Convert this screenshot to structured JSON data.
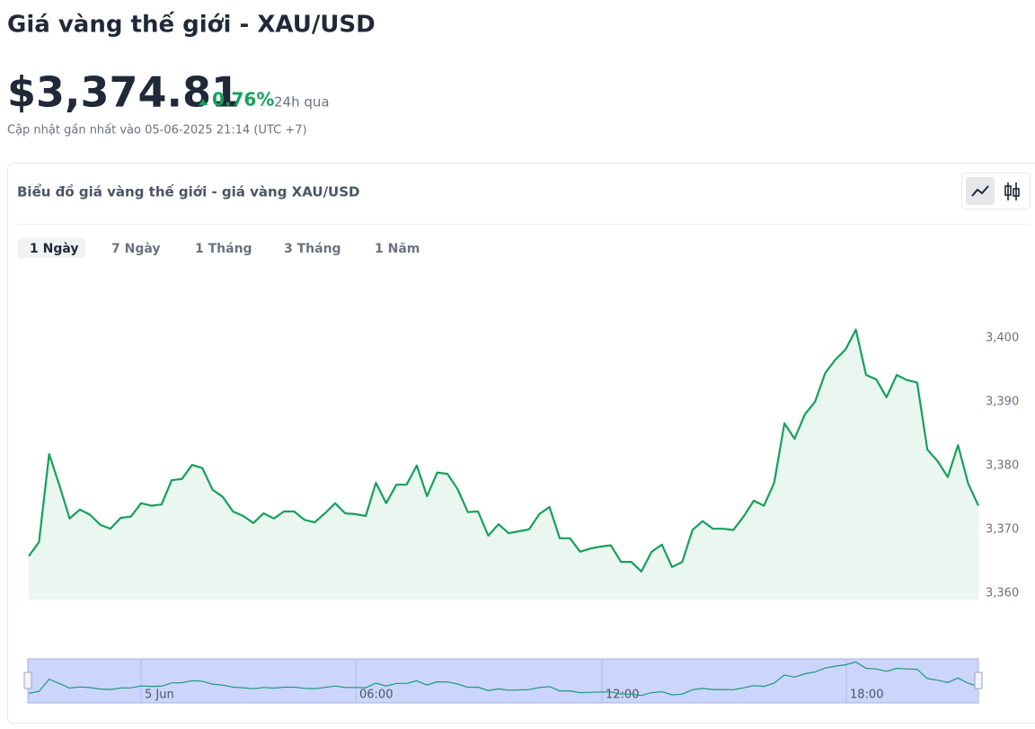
{
  "header": {
    "title": "Giá vàng thế giới - XAU/USD",
    "price": "$3,374.81",
    "change": "0.76%",
    "change_period": "24h qua",
    "updated": "Cập nhật gần nhất vào 05-06-2025 21:14 (UTC +7)"
  },
  "card": {
    "title": "Biểu đồ giá vàng thế giới - giá vàng XAU/USD",
    "ranges": [
      "1 Ngày",
      "7 Ngày",
      "1 Tháng",
      "3 Tháng",
      "1 Năm"
    ],
    "active_range": 0
  },
  "chart_data": {
    "type": "line",
    "color": "#16a05a",
    "values": [
      3365.8,
      3368.0,
      3381.8,
      3376.9,
      3371.7,
      3373.1,
      3372.3,
      3370.7,
      3370.1,
      3371.8,
      3372.0,
      3374.1,
      3373.7,
      3373.9,
      3377.7,
      3377.9,
      3380.1,
      3379.6,
      3376.2,
      3375.1,
      3372.8,
      3372.1,
      3371.0,
      3372.5,
      3371.7,
      3372.8,
      3372.8,
      3371.5,
      3371.1,
      3372.5,
      3374.1,
      3372.5,
      3372.4,
      3372.1,
      3377.3,
      3374.1,
      3377.0,
      3377.0,
      3380.0,
      3375.2,
      3378.9,
      3378.7,
      3376.3,
      3372.7,
      3372.8,
      3369.0,
      3370.8,
      3369.4,
      3369.7,
      3370.0,
      3372.4,
      3373.5,
      3368.6,
      3368.6,
      3366.5,
      3367.0,
      3367.3,
      3367.5,
      3364.9,
      3364.9,
      3363.4,
      3366.5,
      3367.6,
      3364.1,
      3364.9,
      3369.9,
      3371.3,
      3370.1,
      3370.1,
      3369.9,
      3372.0,
      3374.5,
      3373.7,
      3377.3,
      3386.6,
      3384.2,
      3388.0,
      3390.0,
      3394.5,
      3396.6,
      3398.2,
      3401.3,
      3394.2,
      3393.5,
      3390.7,
      3394.2,
      3393.4,
      3393.0,
      3382.5,
      3380.7,
      3378.2,
      3383.2,
      3377.2,
      3373.7
    ],
    "ylim": [
      3359,
      3412
    ],
    "yticks": [
      {
        "value": 3360,
        "label": "3,360"
      },
      {
        "value": 3370,
        "label": "3,370"
      },
      {
        "value": 3380,
        "label": "3,380"
      },
      {
        "value": 3390,
        "label": "3,390"
      },
      {
        "value": 3400,
        "label": "3,400"
      }
    ],
    "navigator_labels": [
      "5 Jun",
      "06:00",
      "12:00",
      "18:00"
    ]
  }
}
